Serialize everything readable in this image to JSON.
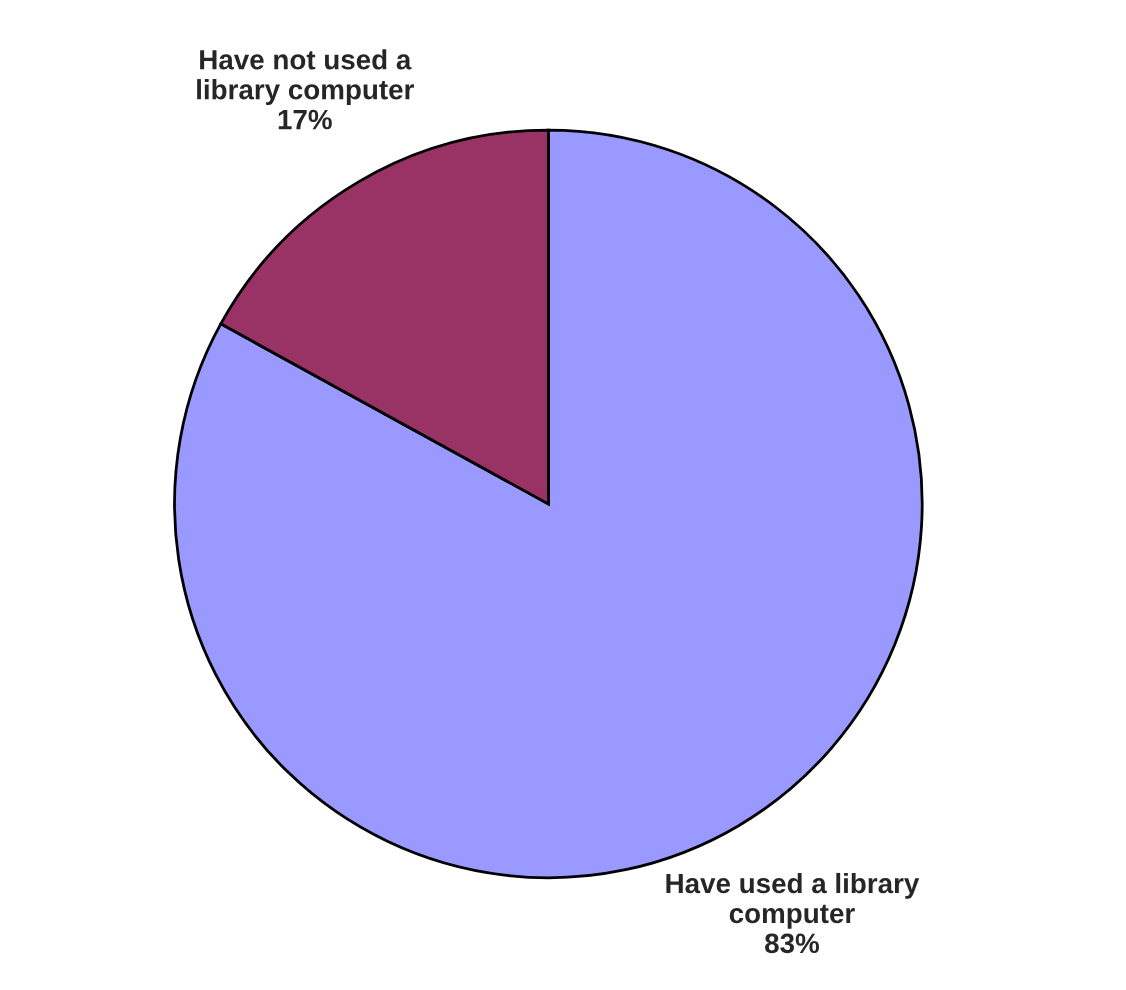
{
  "chart_data": {
    "type": "pie",
    "categories": [
      "Have used a library\ncomputer",
      "Have not used a\nlibrary computer"
    ],
    "values": [
      83,
      17
    ],
    "value_labels": [
      "83%",
      "17%"
    ],
    "colors": [
      "#9999ff",
      "#993366"
    ]
  }
}
